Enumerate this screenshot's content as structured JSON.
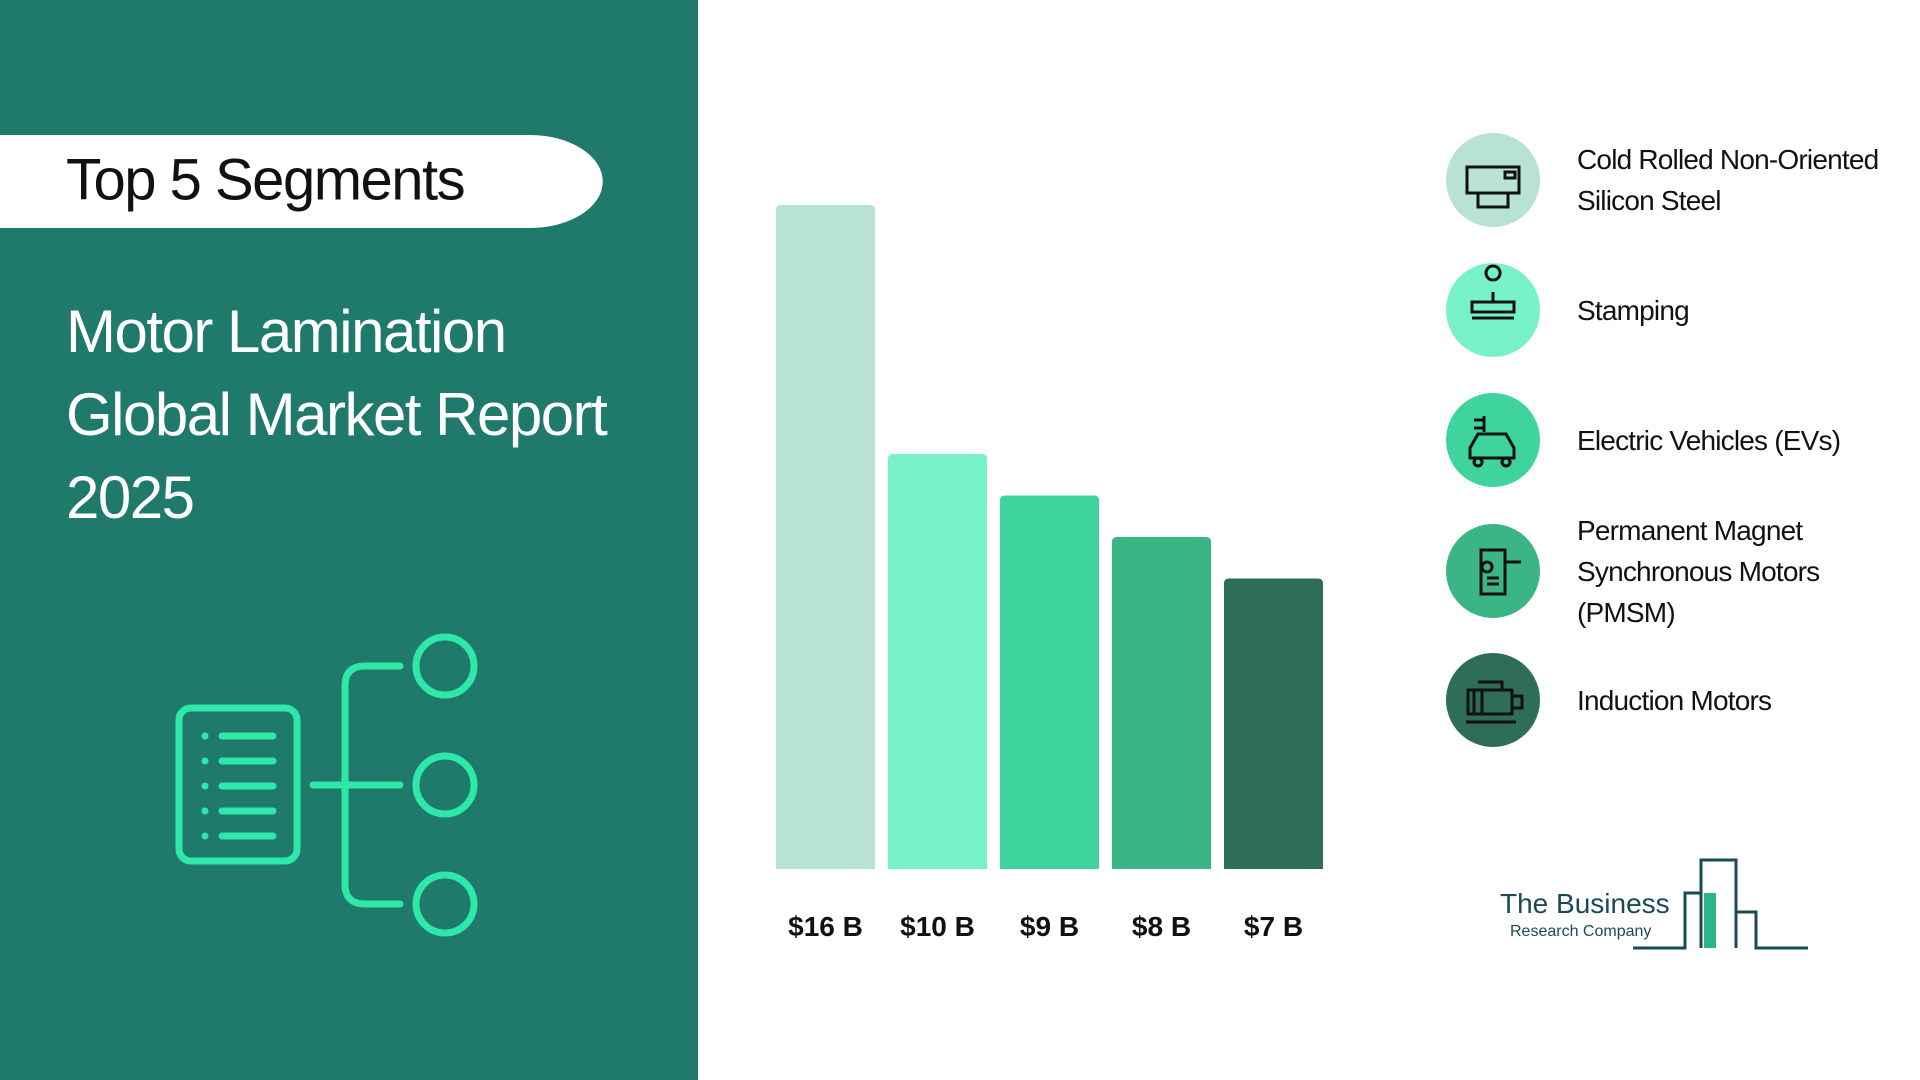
{
  "chart_data": {
    "type": "bar",
    "title": "Top 5 Segments",
    "subtitle": "Motor Lamination Global Market Report 2025",
    "categories": [
      "Cold Rolled Non-Oriented Silicon Steel",
      "Stamping",
      "Electric Vehicles (EVs)",
      "Permanent Magnet Synchronous Motors (PMSM)",
      "Induction Motors"
    ],
    "values": [
      16,
      10,
      9,
      8,
      7
    ],
    "value_labels": [
      "$16 B",
      "$10 B",
      "$9 B",
      "$8 B",
      "$7 B"
    ],
    "colors": [
      "#b8e2d4",
      "#77f2c6",
      "#3fd49d",
      "#3bb585",
      "#2e6e58"
    ]
  },
  "logo": {
    "line1": "The Business",
    "line2": "Research Company"
  }
}
